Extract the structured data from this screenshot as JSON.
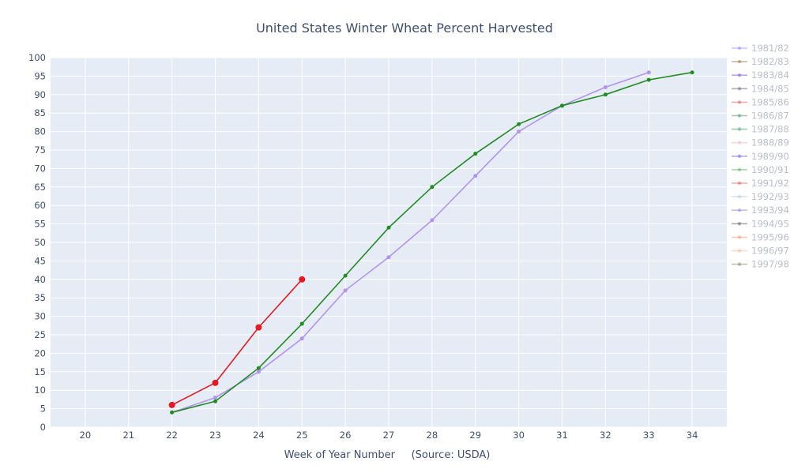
{
  "chart_data": {
    "type": "line",
    "title": "United States Winter Wheat Percent Harvested",
    "xlabel": "Week of Year Number     (Source: USDA)",
    "ylabel": "",
    "xlim": [
      19.2,
      34.8
    ],
    "ylim": [
      0,
      100
    ],
    "x_ticks": [
      20,
      21,
      22,
      23,
      24,
      25,
      26,
      27,
      28,
      29,
      30,
      31,
      32,
      33,
      34
    ],
    "y_ticks": [
      0,
      5,
      10,
      15,
      20,
      25,
      30,
      35,
      40,
      45,
      50,
      55,
      60,
      65,
      70,
      75,
      80,
      85,
      90,
      95,
      100
    ],
    "grid": true,
    "legend_position": "right",
    "legend": [
      {
        "name": "1981/82",
        "color": "#9a8cf2"
      },
      {
        "name": "1982/83",
        "color": "#a87a52"
      },
      {
        "name": "1983/84",
        "color": "#8a5bd8"
      },
      {
        "name": "1984/85",
        "color": "#6f6f88"
      },
      {
        "name": "1985/86",
        "color": "#e26868"
      },
      {
        "name": "1986/87",
        "color": "#5a9a68"
      },
      {
        "name": "1987/88",
        "color": "#52a57a"
      },
      {
        "name": "1988/89",
        "color": "#f0b8c4"
      },
      {
        "name": "1989/90",
        "color": "#7a66e8"
      },
      {
        "name": "1990/91",
        "color": "#62b86a"
      },
      {
        "name": "1991/92",
        "color": "#ec6060"
      },
      {
        "name": "1992/93",
        "color": "#c0c8ea"
      },
      {
        "name": "1993/94",
        "color": "#9a86ea"
      },
      {
        "name": "1994/95",
        "color": "#6a6e7c"
      },
      {
        "name": "1995/96",
        "color": "#f2a07c"
      },
      {
        "name": "1996/97",
        "color": "#f4b8a8"
      },
      {
        "name": "1997/98",
        "color": "#8e8e68"
      }
    ],
    "series": [
      {
        "color": "#b393f0",
        "marker_size": 2.5,
        "x": [
          22,
          23,
          24,
          25,
          26,
          27,
          28,
          29,
          30,
          31,
          32,
          33
        ],
        "y": [
          4,
          8,
          15,
          24,
          37,
          46,
          56,
          68,
          80,
          87,
          92,
          96
        ]
      },
      {
        "color": "#228b22",
        "marker_size": 2.5,
        "x": [
          22,
          23,
          24,
          25,
          26,
          27,
          28,
          29,
          30,
          31,
          32,
          33,
          34
        ],
        "y": [
          4,
          7,
          16,
          28,
          41,
          54,
          65,
          74,
          82,
          87,
          90,
          94,
          96
        ]
      },
      {
        "color": "#e8191e",
        "marker_size": 4,
        "x": [
          22,
          23,
          24,
          25
        ],
        "y": [
          6,
          12,
          27,
          40
        ]
      }
    ]
  }
}
